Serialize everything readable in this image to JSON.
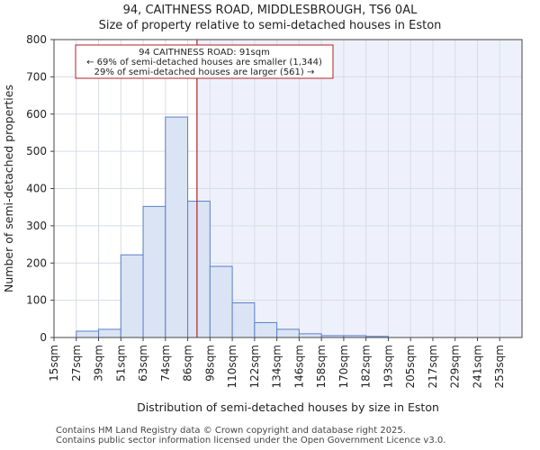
{
  "chart_data": {
    "type": "bar",
    "title": "94, CAITHNESS ROAD, MIDDLESBROUGH, TS6 0AL",
    "subtitle": "Size of property relative to semi-detached houses in Eston",
    "xlabel": "Distribution of semi-detached houses by size in Eston",
    "ylabel": "Number of semi-detached properties",
    "ylim": [
      0,
      800
    ],
    "yticks": [
      0,
      100,
      200,
      300,
      400,
      500,
      600,
      700,
      800
    ],
    "grid": true,
    "categories": [
      "15sqm",
      "27sqm",
      "39sqm",
      "51sqm",
      "63sqm",
      "74sqm",
      "86sqm",
      "98sqm",
      "110sqm",
      "122sqm",
      "134sqm",
      "146sqm",
      "158sqm",
      "170sqm",
      "182sqm",
      "193sqm",
      "205sqm",
      "217sqm",
      "229sqm",
      "241sqm",
      "253sqm"
    ],
    "values": [
      0,
      17,
      22,
      222,
      352,
      592,
      366,
      191,
      93,
      40,
      22,
      10,
      5,
      5,
      3,
      0,
      0,
      0,
      0,
      0,
      0
    ],
    "marker_value": 91,
    "annotation": {
      "line1": "94 CAITHNESS ROAD: 91sqm",
      "line2": "← 69% of semi-detached houses are smaller (1,344)",
      "line3": "29% of semi-detached houses are larger (561) →"
    },
    "colors": {
      "bar_fill": "#dbe4f5",
      "bar_stroke": "#5b7fc7",
      "marker": "#b22222",
      "shade": "#eef1fb"
    }
  },
  "footer": {
    "line1": "Contains HM Land Registry data © Crown copyright and database right 2025.",
    "line2": "Contains public sector information licensed under the Open Government Licence v3.0."
  }
}
